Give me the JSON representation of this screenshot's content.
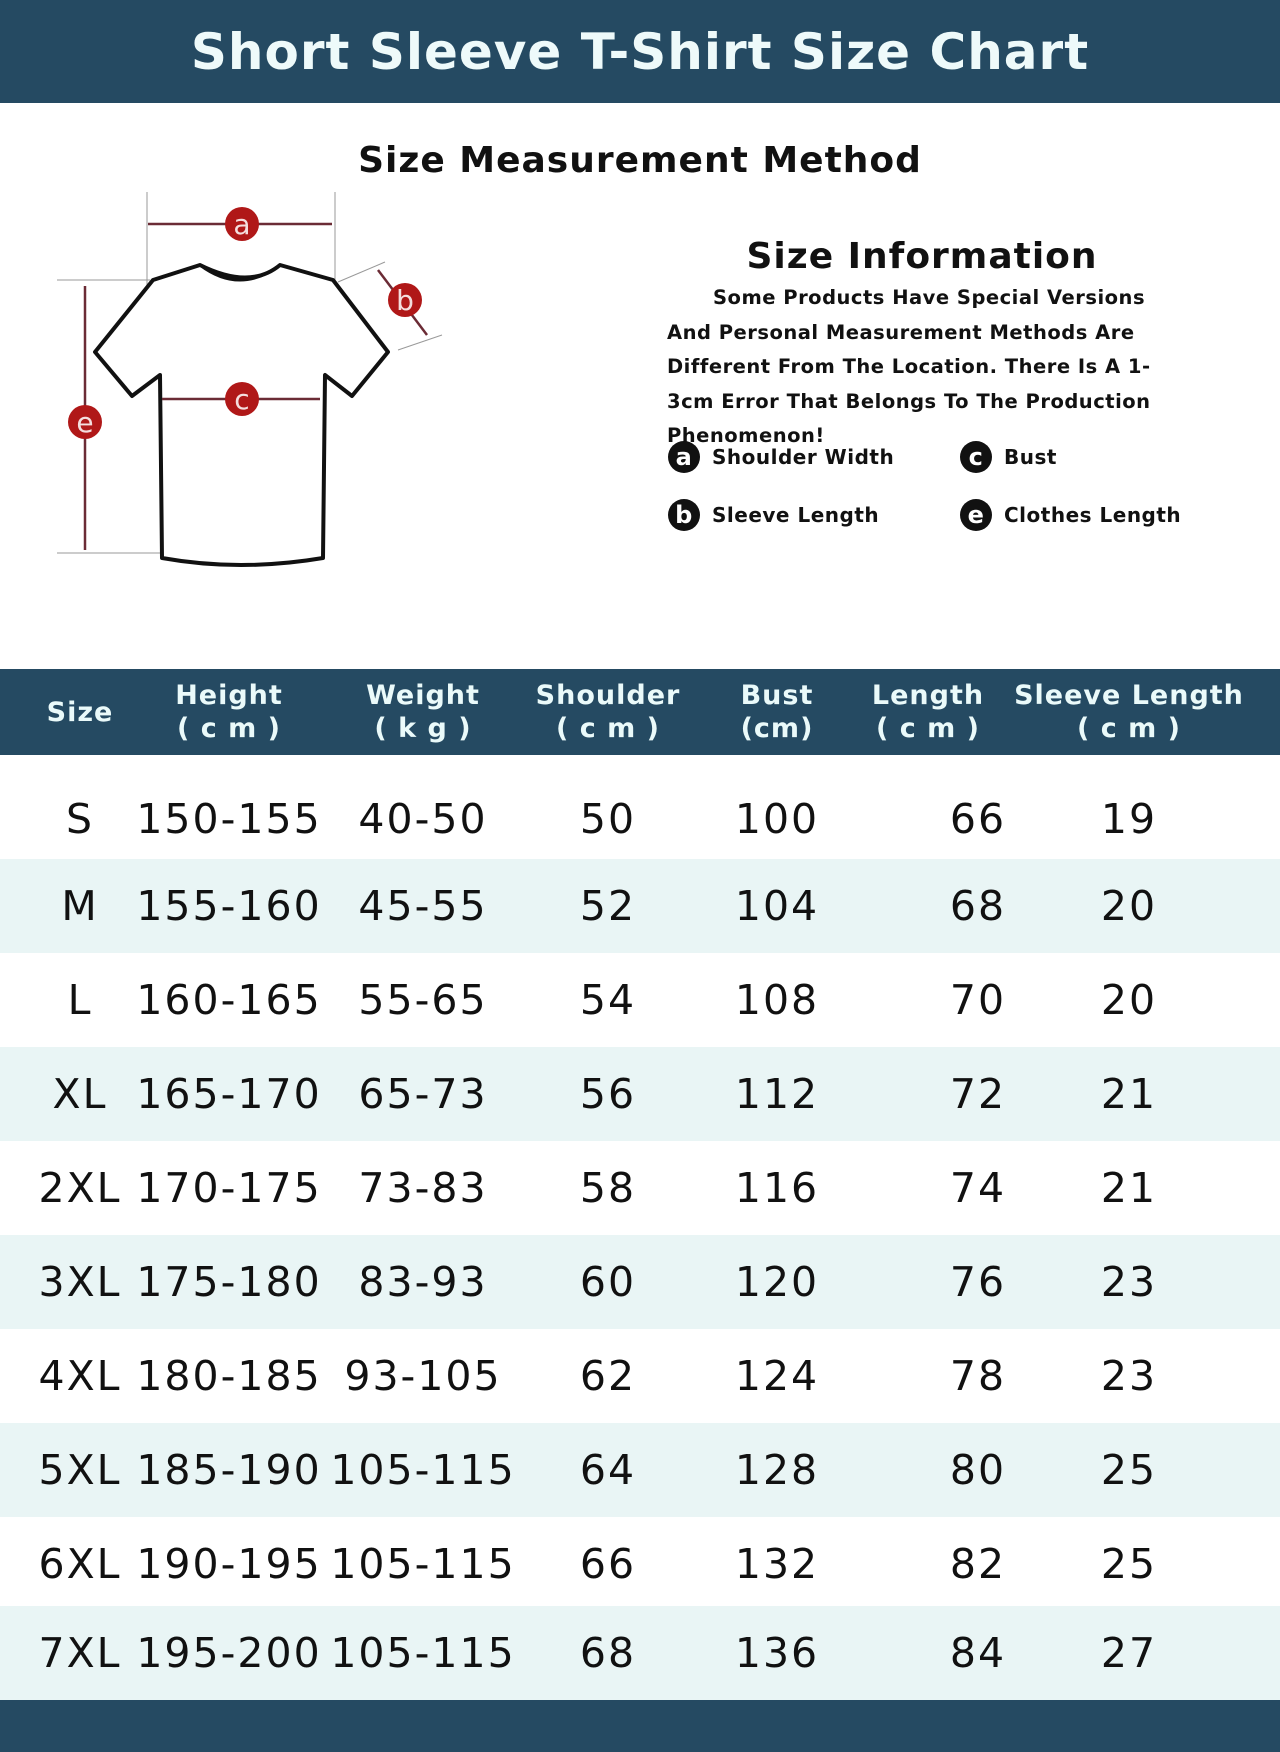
{
  "title": "Short Sleeve T-Shirt Size Chart",
  "method_title": "Size Measurement Method",
  "diagram_labels": [
    "a",
    "b",
    "c",
    "e"
  ],
  "info": {
    "title": "Size Information",
    "text": "Some Products Have Special Versions And Personal Measurement Methods Are Different From The Location. There Is A 1-3cm Error That Belongs To The Production Phenomenon!",
    "legend": [
      {
        "letter": "a",
        "label": "Shoulder Width"
      },
      {
        "letter": "c",
        "label": "Bust"
      },
      {
        "letter": "b",
        "label": "Sleeve Length"
      },
      {
        "letter": "e",
        "label": "Clothes Length"
      }
    ]
  },
  "colors": {
    "band": "#254a62",
    "alt_row": "#e9f5f5",
    "marker": "#b01818"
  },
  "table": {
    "headers": [
      {
        "l1": "Size",
        "l2": ""
      },
      {
        "l1": "Height",
        "l2": "( c m )"
      },
      {
        "l1": "Weight",
        "l2": "( k g )"
      },
      {
        "l1": "Shoulder",
        "l2": "(  c   m  )"
      },
      {
        "l1": "Bust",
        "l2": "(cm)"
      },
      {
        "l1": "Length",
        "l2": "( c m )"
      },
      {
        "l1": "Sleeve Length",
        "l2": "(     c     m     )"
      }
    ],
    "rows": [
      [
        "S",
        "150-155",
        "40-50",
        "50",
        "100",
        "66",
        "19"
      ],
      [
        "M",
        "155-160",
        "45-55",
        "52",
        "104",
        "68",
        "20"
      ],
      [
        "L",
        "160-165",
        "55-65",
        "54",
        "108",
        "70",
        "20"
      ],
      [
        "XL",
        "165-170",
        "65-73",
        "56",
        "112",
        "72",
        "21"
      ],
      [
        "2XL",
        "170-175",
        "73-83",
        "58",
        "116",
        "74",
        "21"
      ],
      [
        "3XL",
        "175-180",
        "83-93",
        "60",
        "120",
        "76",
        "23"
      ],
      [
        "4XL",
        "180-185",
        "93-105",
        "62",
        "124",
        "78",
        "23"
      ],
      [
        "5XL",
        "185-190",
        "105-115",
        "64",
        "128",
        "80",
        "25"
      ],
      [
        "6XL",
        "190-195",
        "105-115",
        "66",
        "132",
        "82",
        "25"
      ],
      [
        "7XL",
        "195-200",
        "105-115",
        "68",
        "136",
        "84",
        "27"
      ]
    ]
  }
}
